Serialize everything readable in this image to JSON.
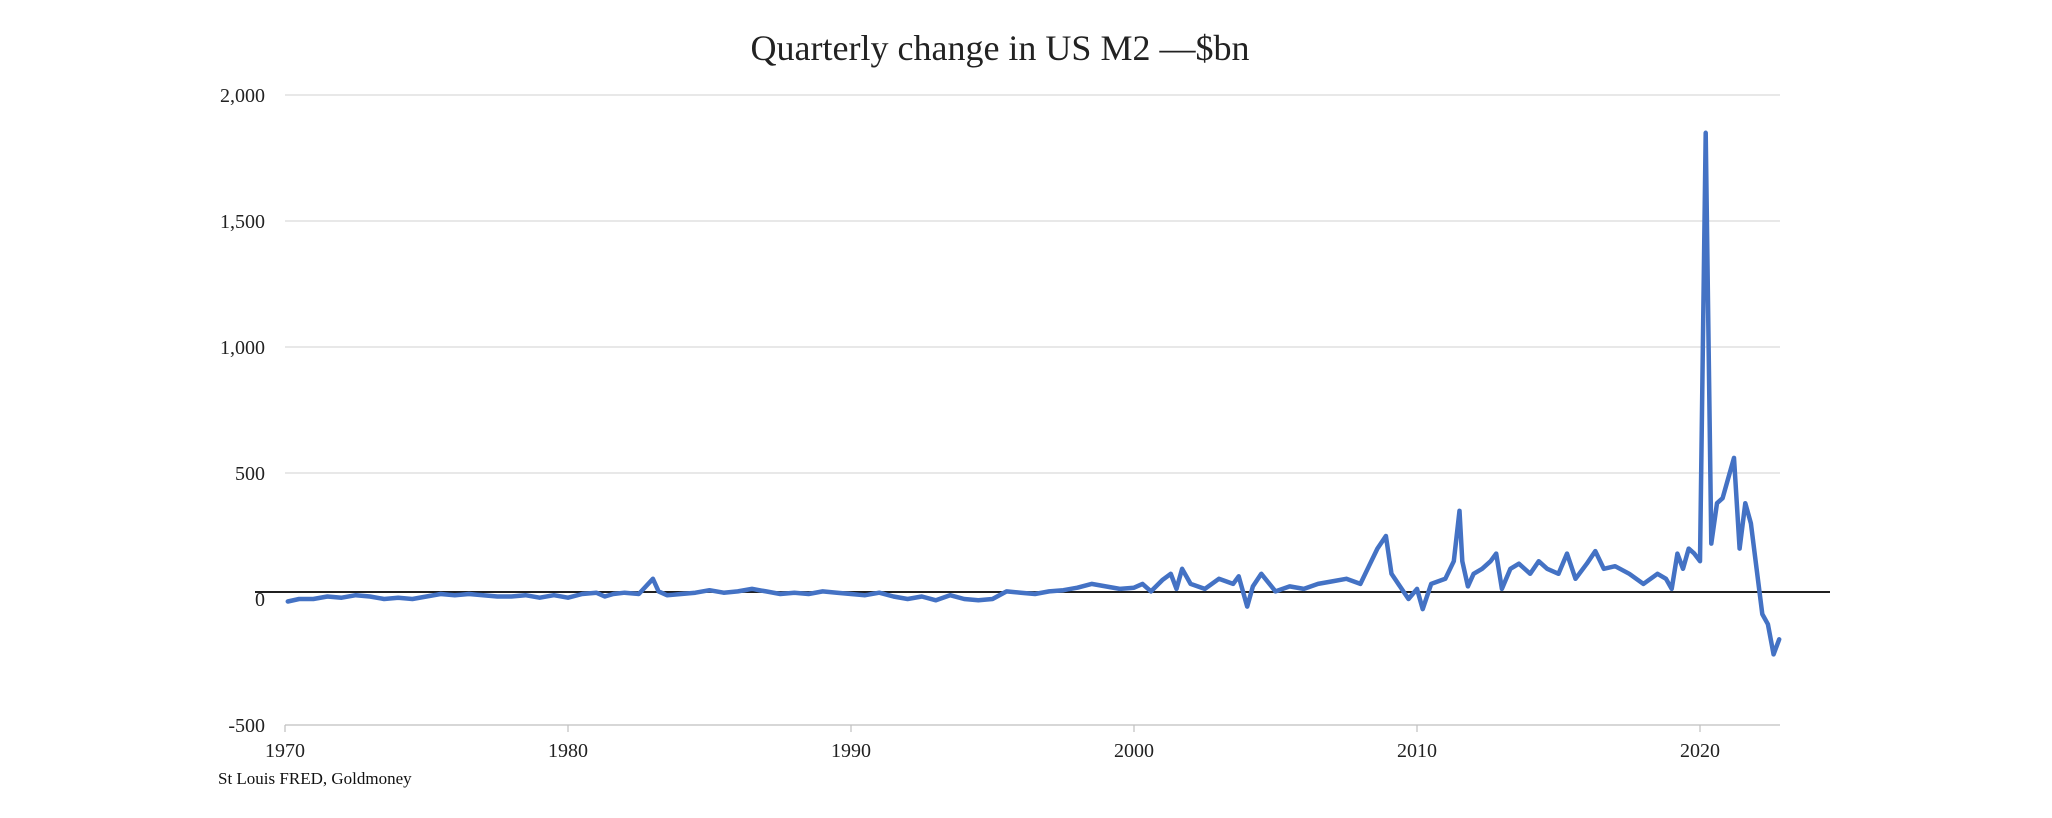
{
  "chart_data": {
    "type": "line",
    "title": "Quarterly change in US M2 —$bn",
    "source": "St Louis FRED, Goldmoney",
    "xlabel": "",
    "ylabel": "",
    "xlim": [
      1970,
      2022.8
    ],
    "ylim": [
      -500,
      2000
    ],
    "grid": true,
    "legend": "none",
    "x_ticks": [
      1970,
      1980,
      1990,
      2000,
      2010,
      2020
    ],
    "x_tick_labels": [
      "1970",
      "1980",
      "1990",
      "2000",
      "2010",
      "2020"
    ],
    "y_ticks": [
      -500,
      0,
      500,
      1000,
      1500,
      2000
    ],
    "y_tick_labels": [
      "-500",
      "0",
      "500",
      "1,000",
      "1,500",
      "2,000"
    ],
    "colors": {
      "series": "#4472c4",
      "zero_line": "#000000",
      "grid": "#d9d9d9"
    },
    "series": [
      {
        "x": [
          1970.1,
          1970.5,
          1971,
          1971.5,
          1972,
          1972.5,
          1973,
          1973.5,
          1974,
          1974.5,
          1975,
          1975.5,
          1976,
          1976.5,
          1977,
          1977.5,
          1978,
          1978.5,
          1979,
          1979.5,
          1980,
          1980.5,
          1981,
          1981.3,
          1981.6,
          1982,
          1982.5,
          1983,
          1983.2,
          1983.5,
          1984,
          1984.5,
          1985,
          1985.5,
          1986,
          1986.5,
          1987,
          1987.5,
          1988,
          1988.5,
          1989,
          1989.5,
          1990,
          1990.5,
          1991,
          1991.5,
          1992,
          1992.5,
          1993,
          1993.5,
          1994,
          1994.5,
          1995,
          1995.5,
          1996,
          1996.5,
          1997,
          1997.5,
          1998,
          1998.5,
          1999,
          1999.5,
          2000,
          2000.3,
          2000.6,
          2001,
          2001.3,
          2001.5,
          2001.7,
          2002,
          2002.5,
          2003,
          2003.5,
          2003.7,
          2004,
          2004.2,
          2004.5,
          2005,
          2005.5,
          2006,
          2006.5,
          2007,
          2007.5,
          2008,
          2008.3,
          2008.6,
          2008.9,
          2009.1,
          2009.4,
          2009.7,
          2010,
          2010.2,
          2010.5,
          2011,
          2011.3,
          2011.5,
          2011.6,
          2011.8,
          2012,
          2012.3,
          2012.6,
          2012.8,
          2013,
          2013.3,
          2013.6,
          2014,
          2014.3,
          2014.6,
          2015,
          2015.3,
          2015.6,
          2016,
          2016.3,
          2016.6,
          2017,
          2017.5,
          2018,
          2018.5,
          2018.8,
          2019,
          2019.2,
          2019.4,
          2019.6,
          2019.8,
          2020,
          2020.2,
          2020.4,
          2020.6,
          2020.8,
          2021,
          2021.2,
          2021.4,
          2021.6,
          2021.8,
          2022,
          2022.2,
          2022.4,
          2022.6,
          2022.8
        ],
        "values": [
          -10,
          0,
          0,
          10,
          5,
          15,
          10,
          0,
          5,
          0,
          10,
          20,
          15,
          20,
          15,
          10,
          10,
          15,
          5,
          15,
          5,
          20,
          25,
          10,
          20,
          25,
          20,
          80,
          30,
          15,
          20,
          25,
          35,
          25,
          30,
          40,
          30,
          20,
          25,
          20,
          30,
          25,
          20,
          15,
          25,
          10,
          0,
          10,
          -5,
          15,
          0,
          -5,
          0,
          30,
          25,
          20,
          30,
          35,
          45,
          60,
          50,
          40,
          45,
          60,
          30,
          75,
          100,
          40,
          120,
          60,
          40,
          80,
          60,
          90,
          -30,
          50,
          100,
          30,
          50,
          40,
          60,
          70,
          80,
          60,
          130,
          200,
          250,
          100,
          50,
          0,
          40,
          -40,
          60,
          80,
          150,
          350,
          150,
          50,
          100,
          120,
          150,
          180,
          40,
          120,
          140,
          100,
          150,
          120,
          100,
          180,
          80,
          140,
          190,
          120,
          130,
          100,
          60,
          100,
          80,
          40,
          180,
          120,
          200,
          180,
          150,
          1850,
          220,
          380,
          400,
          480,
          560,
          200,
          380,
          300,
          120,
          -60,
          -100,
          -220,
          -160
        ]
      }
    ]
  }
}
